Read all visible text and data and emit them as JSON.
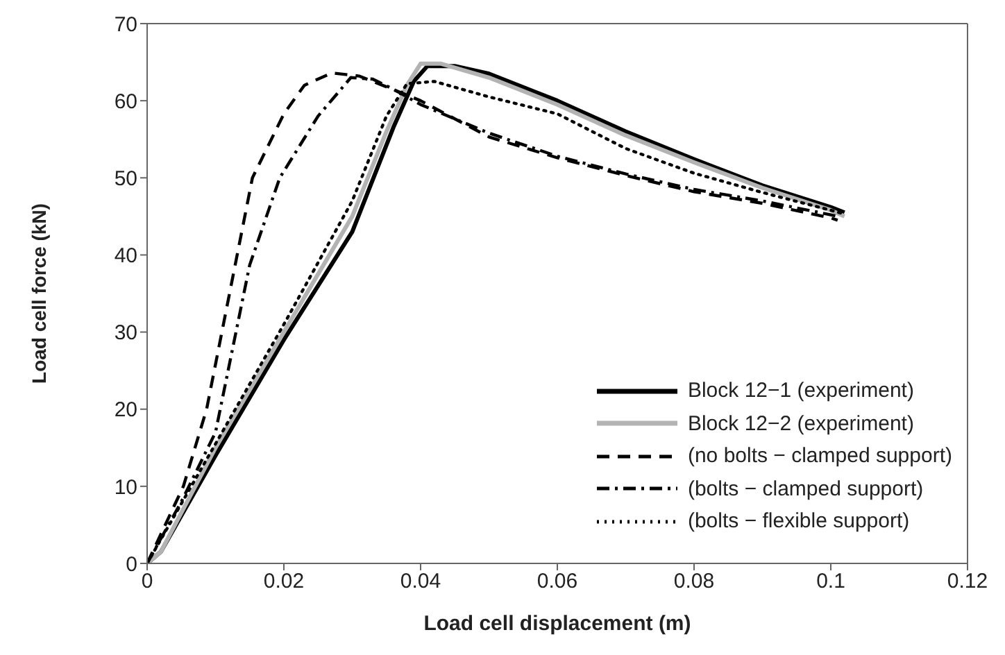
{
  "chart_data": {
    "type": "line",
    "xlabel": "Load cell displacement (m)",
    "ylabel": "Load cell force (kN)",
    "xlim": [
      0,
      0.12
    ],
    "xticks": [
      0,
      0.02,
      0.04,
      0.06,
      0.08,
      0.1,
      0.12
    ],
    "ylim": [
      0,
      70
    ],
    "yticks": [
      0,
      10,
      20,
      30,
      40,
      50,
      60,
      70
    ],
    "grid": false,
    "legend": "bottom right",
    "marker": "none",
    "series": [
      {
        "name": "Block 12−1 (experiment)",
        "color": "#000000",
        "line_style": "solid",
        "x": [
          0,
          0.002,
          0.01,
          0.02,
          0.03,
          0.036,
          0.039,
          0.041,
          0.045,
          0.05,
          0.06,
          0.07,
          0.08,
          0.09,
          0.1,
          0.102
        ],
        "values": [
          0,
          1.5,
          14,
          29,
          43,
          56.5,
          62.5,
          64.5,
          64.5,
          63.5,
          60,
          56,
          52.4,
          49,
          46.2,
          45.5
        ]
      },
      {
        "name": "Block 12−2 (experiment)",
        "color": "#b3b3b3",
        "line_style": "solid",
        "x": [
          0,
          0.002,
          0.01,
          0.02,
          0.03,
          0.035,
          0.038,
          0.04,
          0.043,
          0.05,
          0.06,
          0.07,
          0.08,
          0.09,
          0.1,
          0.102
        ],
        "values": [
          0,
          1.5,
          15,
          30,
          45,
          56,
          62,
          64.8,
          64.8,
          63,
          59.5,
          55.5,
          52,
          48.7,
          45.8,
          45
        ]
      },
      {
        "name": "(no bolts − clamped support)",
        "color": "#000000",
        "line_style": "dashed",
        "x": [
          0,
          0.0053,
          0.0087,
          0.0154,
          0.02,
          0.023,
          0.027,
          0.031,
          0.035,
          0.04,
          0.05,
          0.06,
          0.07,
          0.08,
          0.09,
          0.1,
          0.101
        ],
        "values": [
          0,
          10,
          20,
          50,
          58.3,
          62,
          63.6,
          63.2,
          61.8,
          60,
          55.3,
          52.6,
          50.3,
          48.2,
          46.7,
          44.8,
          44.5
        ]
      },
      {
        "name": "(bolts − clamped support)",
        "color": "#000000",
        "line_style": "dashdot",
        "x": [
          0,
          0.005,
          0.01,
          0.015,
          0.0194,
          0.025,
          0.0298,
          0.033,
          0.036,
          0.04,
          0.05,
          0.06,
          0.07,
          0.08,
          0.09,
          0.1,
          0.101
        ],
        "values": [
          0,
          8,
          17,
          38.7,
          50,
          58,
          63,
          62.8,
          61.5,
          59.5,
          55.8,
          52.8,
          50.5,
          48.5,
          47,
          45.2,
          45
        ]
      },
      {
        "name": "(bolts − flexible support)",
        "color": "#000000",
        "line_style": "dotted",
        "x": [
          0,
          0.01,
          0.02,
          0.03,
          0.035,
          0.038,
          0.042,
          0.05,
          0.06,
          0.07,
          0.08,
          0.09,
          0.1,
          0.102
        ],
        "values": [
          0,
          15.5,
          31,
          47,
          58,
          62.2,
          62.5,
          60.5,
          58.3,
          53.8,
          50.6,
          48.1,
          45.8,
          45.3
        ]
      }
    ]
  }
}
